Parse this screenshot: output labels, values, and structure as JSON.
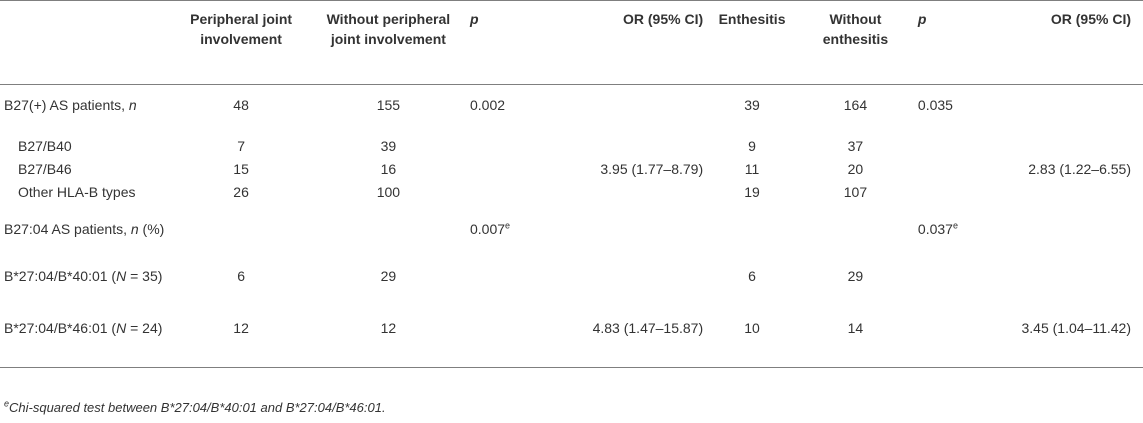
{
  "table": {
    "headers": {
      "label": "",
      "pji": "Peripheral joint involvement",
      "no_pji": "Without peripheral joint involvement",
      "p1": "p",
      "or1": "OR (95% CI)",
      "enth": "Enthesitis",
      "no_enth": "Without enthesitis",
      "p2": "p",
      "or2": "OR (95% CI)"
    },
    "rows": [
      {
        "label_prefix": "B27(+) AS patients, ",
        "label_ital": "n",
        "label_suffix": "",
        "pji": "48",
        "no_pji": "155",
        "p1": "0.002",
        "p1_sup": "",
        "or1": "",
        "enth": "39",
        "no_enth": "164",
        "p2": "0.035",
        "p2_sup": "",
        "or2": ""
      },
      {
        "label_prefix": "B27/B40",
        "label_ital": "",
        "label_suffix": "",
        "pji": "7",
        "no_pji": "39",
        "p1": "",
        "p1_sup": "",
        "or1": "",
        "enth": "9",
        "no_enth": "37",
        "p2": "",
        "p2_sup": "",
        "or2": ""
      },
      {
        "label_prefix": "B27/B46",
        "label_ital": "",
        "label_suffix": "",
        "pji": "15",
        "no_pji": "16",
        "p1": "",
        "p1_sup": "",
        "or1": "3.95 (1.77–8.79)",
        "enth": "11",
        "no_enth": "20",
        "p2": "",
        "p2_sup": "",
        "or2": "2.83 (1.22–6.55)"
      },
      {
        "label_prefix": "Other HLA-B types",
        "label_ital": "",
        "label_suffix": "",
        "pji": "26",
        "no_pji": "100",
        "p1": "",
        "p1_sup": "",
        "or1": "",
        "enth": "19",
        "no_enth": "107",
        "p2": "",
        "p2_sup": "",
        "or2": ""
      },
      {
        "label_prefix": "B27:04 AS patients, ",
        "label_ital": "n",
        "label_suffix": " (%)",
        "pji": "",
        "no_pji": "",
        "p1": "0.007",
        "p1_sup": "e",
        "or1": "",
        "enth": "",
        "no_enth": "",
        "p2": "0.037",
        "p2_sup": "e",
        "or2": ""
      },
      {
        "label_prefix": "B*27:04/B*40:01 (",
        "label_ital": "N",
        "label_suffix": " = 35)",
        "pji": "6",
        "no_pji": "29",
        "p1": "",
        "p1_sup": "",
        "or1": "",
        "enth": "6",
        "no_enth": "29",
        "p2": "",
        "p2_sup": "",
        "or2": ""
      },
      {
        "label_prefix": "B*27:04/B*46:01 (",
        "label_ital": "N",
        "label_suffix": " = 24)",
        "pji": "12",
        "no_pji": "12",
        "p1": "",
        "p1_sup": "",
        "or1": "4.83 (1.47–15.87)",
        "enth": "10",
        "no_enth": "14",
        "p2": "",
        "p2_sup": "",
        "or2": "3.45 (1.04–11.42)"
      }
    ],
    "footnote": {
      "marker": "e",
      "text": "Chi-squared test between B*27:04/B*40:01 and B*27:04/B*46:01."
    }
  }
}
